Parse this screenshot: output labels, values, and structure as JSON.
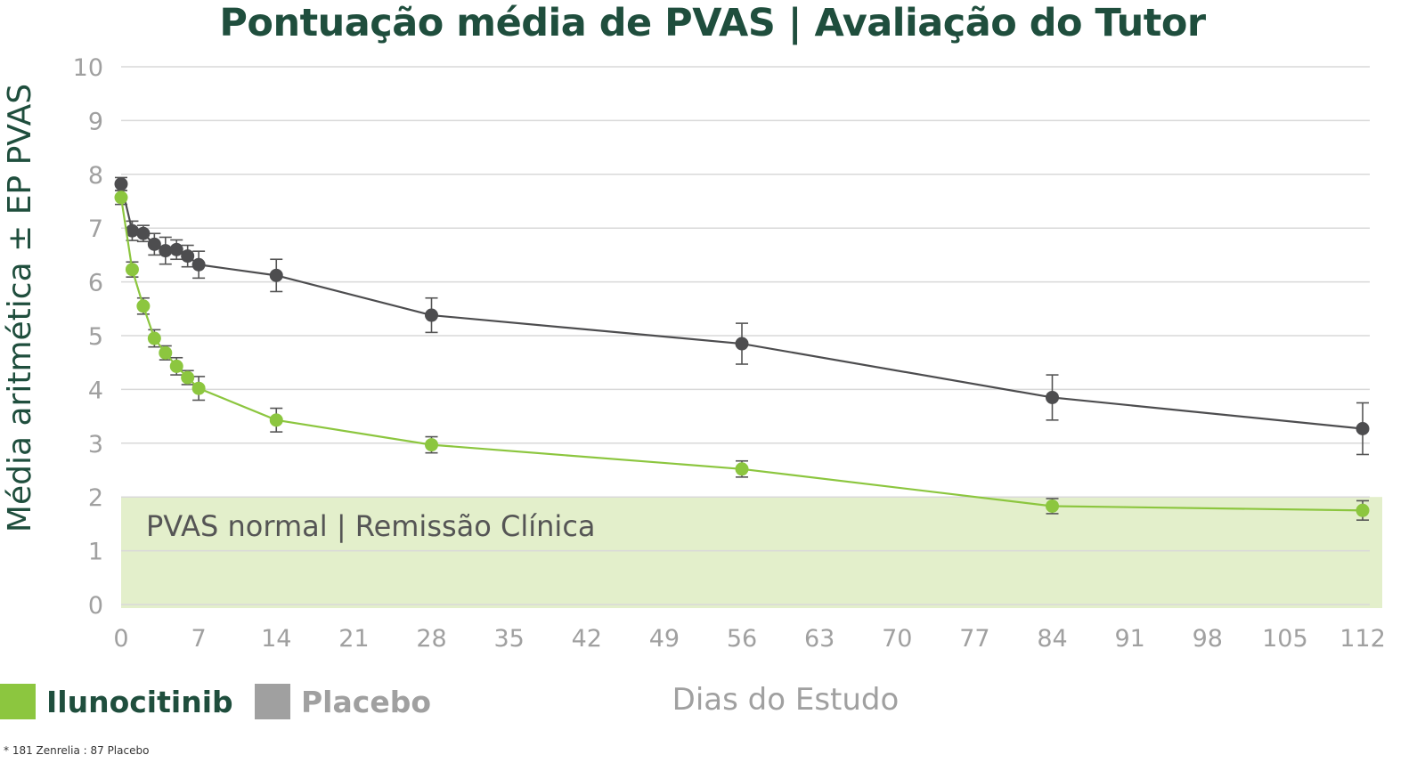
{
  "chart_data": {
    "type": "line",
    "title": "Pontuação média de PVAS | Avaliação do Tutor",
    "xlabel": "Dias do Estudo",
    "ylabel": "Média aritmética ± EP PVAS",
    "xlim": [
      0,
      112
    ],
    "ylim": [
      0,
      10
    ],
    "xticks": [
      0,
      7,
      14,
      21,
      28,
      35,
      42,
      49,
      56,
      63,
      70,
      77,
      84,
      91,
      98,
      105,
      112
    ],
    "yticks": [
      0,
      1,
      2,
      3,
      4,
      5,
      6,
      7,
      8,
      9,
      10
    ],
    "grid": true,
    "legend_position": "bottom-left",
    "band": {
      "y_from": 0,
      "y_to": 2,
      "label": "PVAS normal | Remissão Clínica",
      "color": "#e3efcb"
    },
    "series": [
      {
        "name": "Ilunocitinib",
        "color": "#8cc63f",
        "x": [
          0,
          1,
          2,
          3,
          4,
          5,
          6,
          7,
          14,
          28,
          56,
          84,
          112
        ],
        "y": [
          7.57,
          6.23,
          5.55,
          4.95,
          4.68,
          4.43,
          4.22,
          4.02,
          3.43,
          2.97,
          2.52,
          1.83,
          1.75
        ],
        "err": [
          0.13,
          0.14,
          0.15,
          0.16,
          0.13,
          0.16,
          0.13,
          0.22,
          0.22,
          0.15,
          0.15,
          0.14,
          0.18
        ]
      },
      {
        "name": "Placebo",
        "color": "#4d4d4f",
        "x": [
          0,
          1,
          2,
          3,
          4,
          5,
          6,
          7,
          14,
          28,
          56,
          84,
          112
        ],
        "y": [
          7.82,
          6.95,
          6.9,
          6.7,
          6.58,
          6.6,
          6.48,
          6.32,
          6.12,
          5.38,
          4.85,
          3.85,
          3.27
        ],
        "err": [
          0.12,
          0.18,
          0.15,
          0.2,
          0.25,
          0.18,
          0.2,
          0.25,
          0.3,
          0.32,
          0.38,
          0.42,
          0.48
        ]
      }
    ]
  },
  "legend": [
    {
      "label": "Ilunocitinib",
      "color": "#8cc63f",
      "text_color": "#1f4e3d"
    },
    {
      "label": "Placebo",
      "color": "#a0a0a0",
      "text_color": "#a0a0a0"
    }
  ],
  "footnote": "* 181 Zenrelia : 87 Placebo",
  "colors": {
    "title": "#1f4e3d",
    "tick": "#a0a0a0",
    "grid": "#d9d9d9"
  }
}
